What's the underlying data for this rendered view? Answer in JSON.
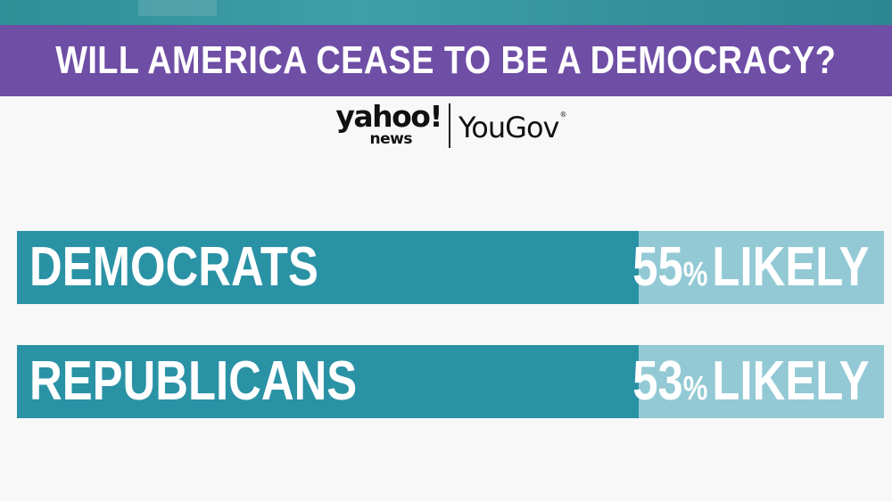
{
  "header": {
    "title": "WILL AMERICA CEASE TO BE A DEMOCRACY?"
  },
  "logos": {
    "yahoo_word": "yahoo!",
    "yahoo_sub": "news",
    "yougov": "YouGov",
    "yougov_mark": "®"
  },
  "chart_data": {
    "type": "bar",
    "orientation": "horizontal",
    "title": "WILL AMERICA CEASE TO BE A DEMOCRACY?",
    "categories": [
      "DEMOCRATS",
      "REPUBLICANS"
    ],
    "values": [
      55,
      53
    ],
    "display_values": [
      "55",
      "53"
    ],
    "unit_symbol": "%",
    "value_suffix": "LIKELY",
    "xlim": [
      0,
      100
    ],
    "legend": "none",
    "grid": false
  },
  "colors": {
    "banner": "#6f4ea6",
    "bar_fill": "#2a92a5",
    "bar_rest": "#92c9d4",
    "background": "#f7f8f7"
  }
}
